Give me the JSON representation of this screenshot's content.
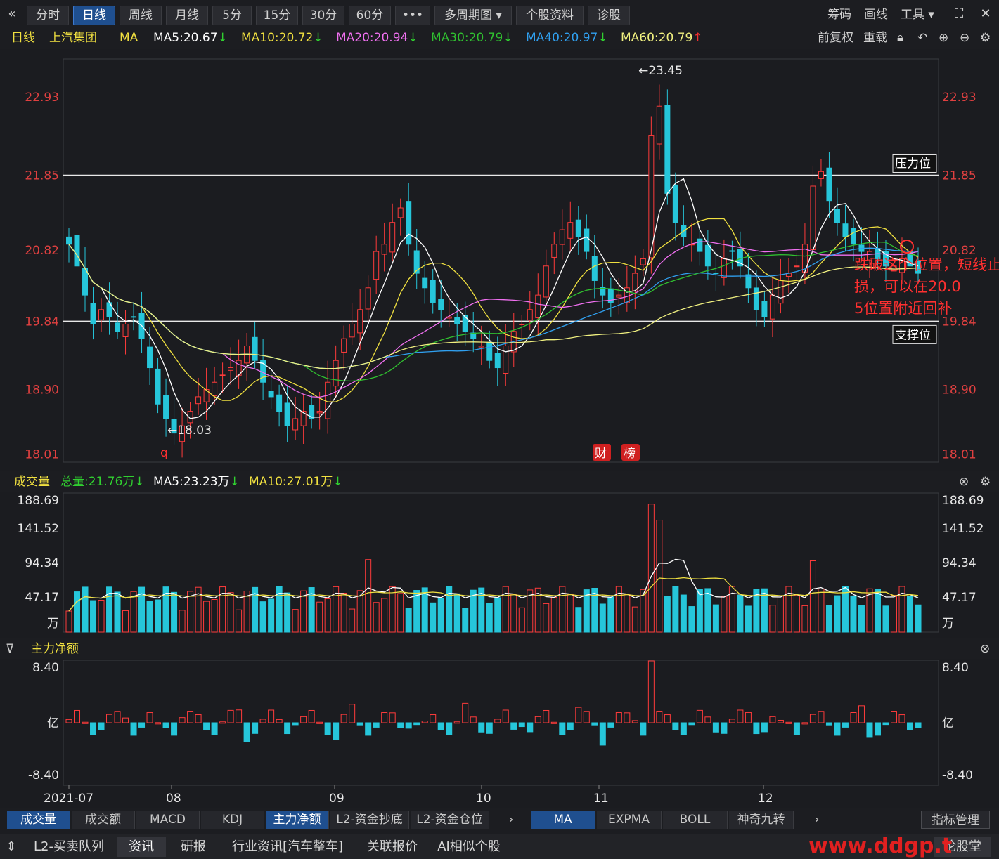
{
  "toolbar": {
    "collapse_icon": "double-chevron-left-icon",
    "tabs": [
      "分时",
      "日线",
      "周线",
      "月线",
      "5分",
      "15分",
      "30分",
      "60分",
      "•••",
      "多周期图 ▾",
      "个股资料",
      "诊股"
    ],
    "active_tab": "日线",
    "right": [
      "筹码",
      "画线",
      "工具 ▾"
    ],
    "fullscreen_icon": "fullscreen-icon"
  },
  "ma_legend": {
    "period": "日线",
    "stock": "上汽集团",
    "ma": "MA",
    "items": [
      {
        "label": "MA5:20.67",
        "arrow": "↓",
        "color": "#ffffff"
      },
      {
        "label": "MA10:20.72",
        "arrow": "↓",
        "color": "#f0e040"
      },
      {
        "label": "MA20:20.94",
        "arrow": "↓",
        "color": "#f070f0"
      },
      {
        "label": "MA30:20.79",
        "arrow": "↓",
        "color": "#30c030"
      },
      {
        "label": "MA40:20.97",
        "arrow": "↓",
        "color": "#30a0f0"
      },
      {
        "label": "MA60:20.79",
        "arrow": "↑",
        "color": "#f0f080"
      }
    ],
    "right": [
      "前复权",
      "重载"
    ]
  },
  "chart_data": [
    {
      "type": "candlestick",
      "title": "上汽集团 日线",
      "y_ticks": [
        "22.93",
        "21.85",
        "20.82",
        "19.84",
        "18.90",
        "18.01"
      ],
      "ylim": [
        17.9,
        23.45
      ],
      "x_ticks": [
        "2021-07",
        "08",
        "09",
        "10",
        "11",
        "12"
      ],
      "annotations": {
        "high": "←23.45",
        "low": "←18.03",
        "resistance_label": "压力位",
        "support_label": "支撑位",
        "resistance_value": 21.85,
        "support_value": 19.84,
        "note": "跌破这个位置，短线止损，可以在20.05位置附近回补",
        "marker_q": "q",
        "badge_cai": "财",
        "badge_bang": "榜"
      },
      "closes": [
        20.9,
        20.6,
        20.2,
        19.8,
        20.0,
        19.9,
        19.7,
        19.8,
        19.9,
        19.6,
        19.2,
        18.7,
        18.5,
        18.3,
        18.4,
        18.6,
        18.8,
        18.9,
        19.0,
        19.1,
        19.2,
        19.3,
        19.5,
        19.3,
        19.0,
        18.8,
        18.6,
        18.4,
        18.5,
        18.6,
        18.5,
        18.6,
        19.0,
        19.3,
        19.6,
        19.8,
        20.0,
        20.3,
        20.8,
        20.9,
        21.2,
        21.4,
        20.9,
        20.5,
        20.3,
        20.1,
        20.0,
        19.9,
        19.8,
        19.7,
        19.6,
        19.5,
        19.3,
        19.2,
        19.5,
        19.7,
        19.8,
        20.0,
        20.2,
        20.6,
        20.9,
        21.1,
        21.2,
        21.0,
        20.8,
        20.4,
        20.2,
        20.1,
        20.2,
        20.3,
        20.5,
        20.7,
        22.4,
        22.8,
        21.6,
        21.2,
        21.0,
        20.9,
        20.8,
        20.6,
        20.5,
        20.7,
        20.8,
        20.6,
        20.3,
        20.0,
        19.9,
        20.2,
        20.4,
        20.5,
        20.6,
        20.9,
        21.7,
        21.9,
        21.5,
        21.2,
        21.0,
        20.9,
        20.8,
        20.8,
        20.7,
        20.6,
        20.6,
        20.7,
        20.6,
        20.5
      ],
      "volume": {
        "title": "成交量",
        "total": "总量:21.76万",
        "ma5": "MA5:23.23万",
        "ma10": "MA10:27.01万",
        "y_ticks": [
          "188.69",
          "141.52",
          "94.34",
          "47.17",
          "万"
        ]
      },
      "main_flow": {
        "title": "主力净额",
        "y_ticks": [
          "8.40",
          "亿",
          "-8.40"
        ]
      }
    }
  ],
  "indicator_tabs": [
    "成交量",
    "成交额",
    "MACD",
    "KDJ",
    "主力净额",
    "L2-资金抄底",
    "L2-资金仓位"
  ],
  "indicator_active": [
    "成交量",
    "主力净额"
  ],
  "overlay_tabs": [
    "MA",
    "EXPMA",
    "BOLL",
    "神奇九转"
  ],
  "manage_button": "指标管理",
  "bottom_tabs": [
    "L2-买卖队列",
    "资讯",
    "研报",
    "行业资讯[汽车整车]",
    "关联报价",
    "AI相似个股"
  ],
  "bottom_active": "资讯",
  "bottom_right": "论股堂",
  "watermark": "www.ddgp.t"
}
